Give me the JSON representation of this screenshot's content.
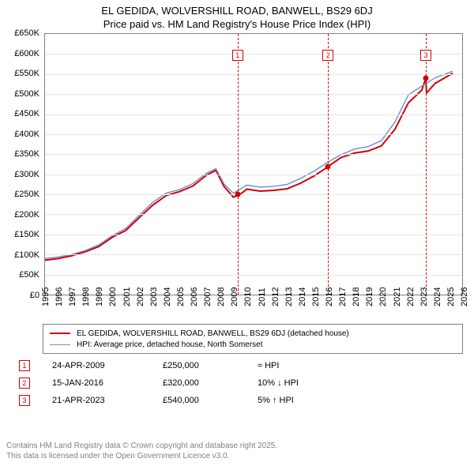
{
  "title": {
    "line1": "EL GEDIDA, WOLVERSHILL ROAD, BANWELL, BS29 6DJ",
    "line2": "Price paid vs. HM Land Registry's House Price Index (HPI)",
    "fontsize": 13
  },
  "chart": {
    "type": "line",
    "background_color": "#ffffff",
    "border_color": "#808080",
    "grid_color": "#e5e5e5",
    "axis_font_size": 11,
    "xlim": [
      1995,
      2026
    ],
    "ylim": [
      0,
      650000
    ],
    "ytick_step": 50000,
    "ytick_labels": [
      "£0",
      "£50K",
      "£100K",
      "£150K",
      "£200K",
      "£250K",
      "£300K",
      "£350K",
      "£400K",
      "£450K",
      "£500K",
      "£550K",
      "£600K",
      "£650K"
    ],
    "xtick_step": 1,
    "xtick_labels": [
      "1995",
      "1996",
      "1997",
      "1998",
      "1999",
      "2000",
      "2001",
      "2002",
      "2003",
      "2004",
      "2005",
      "2006",
      "2007",
      "2008",
      "2009",
      "2010",
      "2011",
      "2012",
      "2013",
      "2014",
      "2015",
      "2016",
      "2017",
      "2018",
      "2019",
      "2020",
      "2021",
      "2022",
      "2023",
      "2024",
      "2025",
      "2026"
    ],
    "series": [
      {
        "name": "property",
        "label": "EL GEDIDA, WOLVERSHILL ROAD, BANWELL, BS29 6DJ (detached house)",
        "color": "#d40000",
        "line_width": 2,
        "xs": [
          1995,
          1996,
          1997,
          1998,
          1999,
          2000,
          2001,
          2002,
          2003,
          2004,
          2005,
          2006,
          2007,
          2007.7,
          2008.3,
          2009,
          2009.5,
          2010,
          2011,
          2012,
          2013,
          2014,
          2015,
          2016,
          2016.05,
          2017,
          2018,
          2019,
          2020,
          2021,
          2022,
          2023,
          2023.3,
          2023.35,
          2024,
          2025.3
        ],
        "ys": [
          86000,
          90000,
          97000,
          107000,
          120000,
          143000,
          160000,
          192000,
          223000,
          247000,
          257000,
          271000,
          298000,
          310000,
          270000,
          243000,
          250000,
          263000,
          258000,
          260000,
          264000,
          278000,
          296000,
          318000,
          320000,
          342000,
          353000,
          358000,
          371000,
          412000,
          478000,
          510000,
          540000,
          503000,
          527000,
          552000
        ]
      },
      {
        "name": "hpi",
        "label": "HPI: Average price, detached house, North Somerset",
        "color": "#6b8fd4",
        "line_width": 1.4,
        "xs": [
          1995,
          1996,
          1997,
          1998,
          1999,
          2000,
          2001,
          2002,
          2003,
          2004,
          2005,
          2006,
          2007,
          2007.7,
          2008.3,
          2009,
          2010,
          2011,
          2012,
          2013,
          2014,
          2015,
          2016,
          2017,
          2018,
          2019,
          2020,
          2021,
          2022,
          2023,
          2024,
          2025.3
        ],
        "ys": [
          90000,
          94000,
          100000,
          110000,
          124000,
          147000,
          165000,
          198000,
          230000,
          253000,
          262000,
          277000,
          303000,
          314000,
          276000,
          253000,
          273000,
          268000,
          270000,
          275000,
          290000,
          308000,
          330000,
          349000,
          363000,
          369000,
          384000,
          430000,
          498000,
          520000,
          541000,
          557000
        ]
      }
    ],
    "sale_markers": [
      {
        "id": "1",
        "x": 2009.31,
        "y": 250000,
        "box_top_pct": 6
      },
      {
        "id": "2",
        "x": 2016.04,
        "y": 320000,
        "box_top_pct": 6
      },
      {
        "id": "3",
        "x": 2023.3,
        "y": 540000,
        "box_top_pct": 6
      }
    ],
    "marker_color": "#d40000",
    "marker_dash_color": "#d40000"
  },
  "legend": {
    "items": [
      {
        "series": "property"
      },
      {
        "series": "hpi"
      }
    ]
  },
  "events": [
    {
      "id": "1",
      "date": "24-APR-2009",
      "price": "£250,000",
      "hpi": "≈ HPI"
    },
    {
      "id": "2",
      "date": "15-JAN-2016",
      "price": "£320,000",
      "hpi": "10% ↓ HPI"
    },
    {
      "id": "3",
      "date": "21-APR-2023",
      "price": "£540,000",
      "hpi": "5% ↑ HPI"
    }
  ],
  "footer": {
    "line1": "Contains HM Land Registry data © Crown copyright and database right 2025.",
    "line2": "This data is licensed under the Open Government Licence v3.0.",
    "color": "#808080"
  }
}
